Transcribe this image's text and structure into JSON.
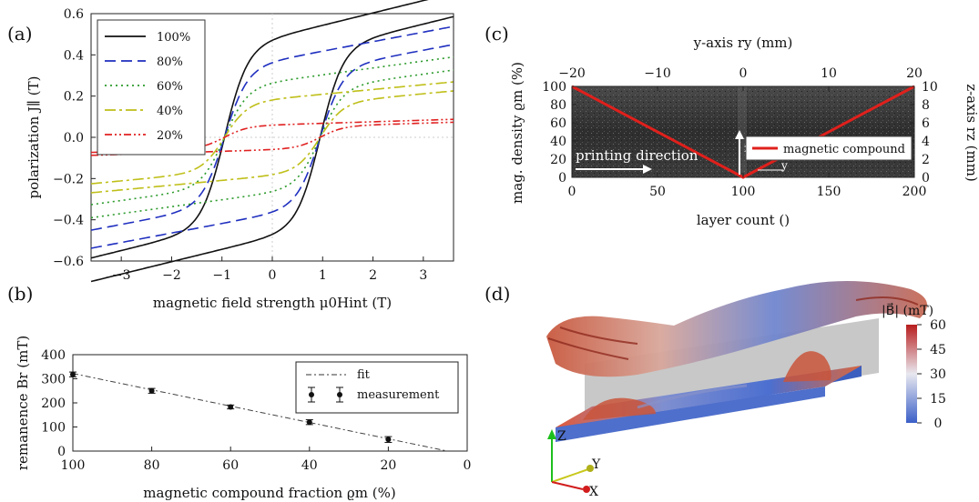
{
  "panels": {
    "a": "(a)",
    "b": "(b)",
    "c": "(c)",
    "d": "(d)"
  },
  "chart_data": [
    {
      "id": "a",
      "type": "line",
      "xlabel": "magnetic field strength μ0Hint (T)",
      "ylabel": "polarization J∥ (T)",
      "xlim": [
        -3.6,
        3.6
      ],
      "ylim": [
        -0.6,
        0.6
      ],
      "xticks": [
        -3,
        -2,
        -1,
        0,
        1,
        2,
        3
      ],
      "yticks": [
        -0.6,
        -0.4,
        -0.2,
        0.0,
        0.2,
        0.4,
        0.6
      ],
      "ytick_labels": [
        "−0.6",
        "−0.4",
        "−0.2",
        "0.0",
        "0.2",
        "0.4",
        "0.6"
      ],
      "xtick_labels": [
        "−3",
        "−2",
        "−1",
        "0",
        "1",
        "2",
        "3"
      ],
      "legend_position": "top-left",
      "series": [
        {
          "name": "100%",
          "saturation": 0.52,
          "coercivity": 0.95,
          "color": "#111111",
          "dash": ""
        },
        {
          "name": "80%",
          "saturation": 0.4,
          "coercivity": 0.95,
          "color": "#1f2fbf",
          "dash": "12,6"
        },
        {
          "name": "60%",
          "saturation": 0.29,
          "coercivity": 0.95,
          "color": "#2a9a2a",
          "dash": "2,4"
        },
        {
          "name": "40%",
          "saturation": 0.2,
          "coercivity": 0.95,
          "color": "#bfbf1a",
          "dash": "12,4,3,4"
        },
        {
          "name": "20%",
          "saturation": 0.065,
          "coercivity": 0.95,
          "color": "#e02020",
          "dash": "8,3,2,3,2,3"
        }
      ]
    },
    {
      "id": "b",
      "type": "scatter",
      "xlabel": "magnetic compound fraction ϱm (%)",
      "ylabel": "remanence Br (mT)",
      "xlim": [
        100,
        0
      ],
      "ylim": [
        0,
        400
      ],
      "xticks": [
        100,
        80,
        60,
        40,
        20,
        0
      ],
      "yticks": [
        0,
        100,
        200,
        300,
        400
      ],
      "legend_position": "top-right",
      "fit_label": "fit",
      "measurement_label": "measurement",
      "points": [
        {
          "x": 100,
          "y": 318,
          "err": 10
        },
        {
          "x": 80,
          "y": 250,
          "err": 10
        },
        {
          "x": 60,
          "y": 183,
          "err": 8
        },
        {
          "x": 40,
          "y": 120,
          "err": 10
        },
        {
          "x": 20,
          "y": 48,
          "err": 12
        }
      ],
      "fit": {
        "x": [
          100,
          5
        ],
        "y": [
          322,
          0
        ]
      }
    },
    {
      "id": "c",
      "type": "line",
      "xlabel": "layer count ()",
      "ylabel": "mag. density ϱm (%)",
      "top_xlabel": "y-axis ry (mm)",
      "right_ylabel": "z-axis rz (mm)",
      "xlim": [
        0,
        200
      ],
      "ylim": [
        0,
        100
      ],
      "xticks": [
        0,
        50,
        100,
        150,
        200
      ],
      "yticks": [
        0,
        20,
        40,
        60,
        80,
        100
      ],
      "top_xticks": [
        -20,
        -10,
        0,
        10,
        20
      ],
      "top_xtick_labels": [
        "−20",
        "−10",
        "0",
        "10",
        "20"
      ],
      "right_yticks": [
        0,
        2,
        4,
        6,
        8,
        10
      ],
      "series": [
        {
          "name": "magnetic compound",
          "x": [
            0,
            100,
            200
          ],
          "y": [
            100,
            0,
            100
          ],
          "color": "#e0201c"
        }
      ],
      "annotations": {
        "printing": "printing direction",
        "z": "z",
        "y": "y"
      }
    }
  ],
  "panel_d": {
    "colorbar_label": "|B⃗| (mT)",
    "colorbar_ticks": [
      0,
      15,
      30,
      45,
      60
    ],
    "axis_labels": {
      "z": "Z",
      "y": "Y",
      "x": "X"
    }
  }
}
